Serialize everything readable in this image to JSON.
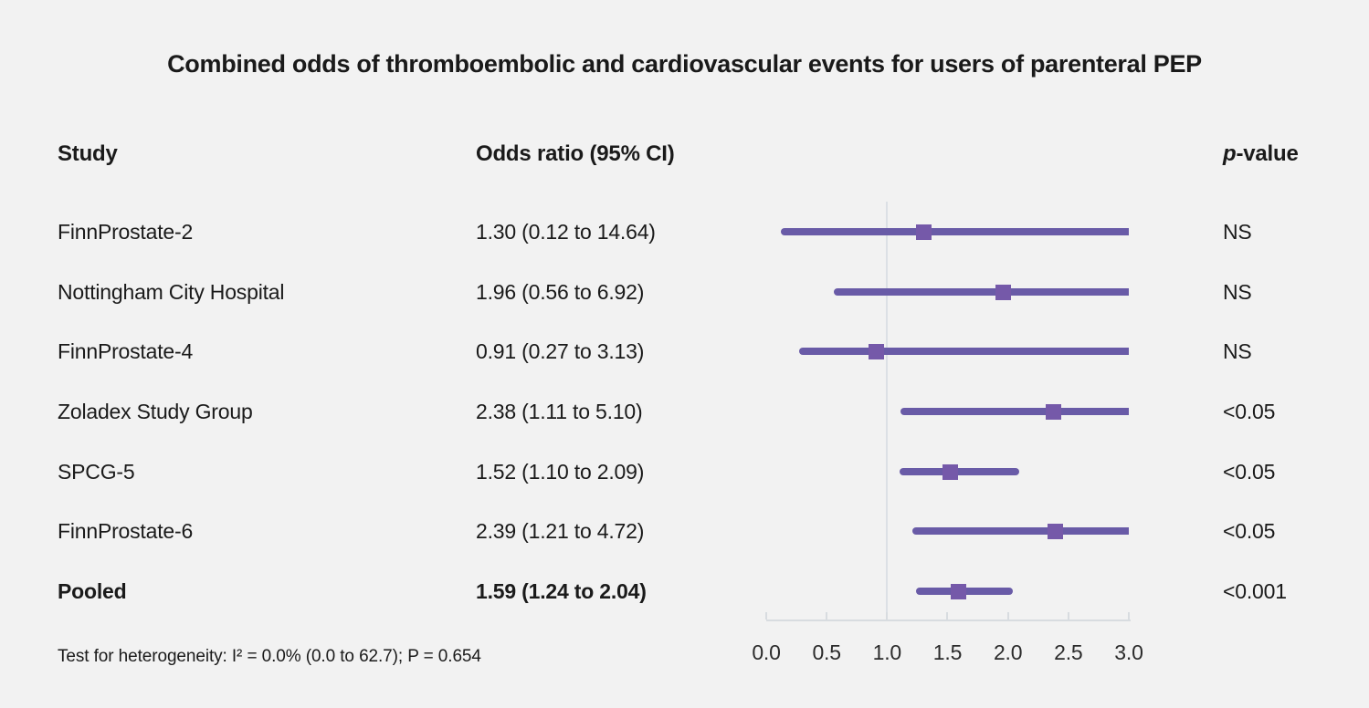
{
  "title": "Combined odds of thromboembolic and cardiovascular events for users of parenteral PEP",
  "columns": {
    "study": "Study",
    "odds_ratio": "Odds ratio (95% CI)",
    "p_value_italic": "p",
    "p_value_rest": "-value"
  },
  "footer": "Test for heterogeneity: I² = 0.0% (0.0 to 62.7); P = 0.654",
  "colors": {
    "background": "#f2f2f2",
    "ci_line": "#695BA7",
    "marker": "#7559A9",
    "reference_line": "#dce0e5",
    "axis_line": "#d8dce0",
    "text": "#1a1a1a"
  },
  "chart_data": {
    "type": "forest",
    "title": "Combined odds of thromboembolic and cardiovascular events for users of parenteral PEP",
    "xlim": [
      0.0,
      3.0
    ],
    "x_ticks": [
      "0.0",
      "0.5",
      "1.0",
      "1.5",
      "2.0",
      "2.5",
      "3.0"
    ],
    "reference_value": 1.0,
    "rows": [
      {
        "study": "FinnProstate-2",
        "or": 1.3,
        "ci_low": 0.12,
        "ci_high": 14.64,
        "or_label": "1.30 (0.12 to 14.64)",
        "p_value": "NS",
        "bold": false
      },
      {
        "study": "Nottingham City Hospital",
        "or": 1.96,
        "ci_low": 0.56,
        "ci_high": 6.92,
        "or_label": "1.96 (0.56 to 6.92)",
        "p_value": "NS",
        "bold": false
      },
      {
        "study": "FinnProstate-4",
        "or": 0.91,
        "ci_low": 0.27,
        "ci_high": 3.13,
        "or_label": "0.91 (0.27 to 3.13)",
        "p_value": "NS",
        "bold": false
      },
      {
        "study": "Zoladex Study Group",
        "or": 2.38,
        "ci_low": 1.11,
        "ci_high": 5.1,
        "or_label": "2.38 (1.11 to 5.10)",
        "p_value": "<0.05",
        "bold": false
      },
      {
        "study": "SPCG-5",
        "or": 1.52,
        "ci_low": 1.1,
        "ci_high": 2.09,
        "or_label": "1.52 (1.10 to 2.09)",
        "p_value": "<0.05",
        "bold": false
      },
      {
        "study": "FinnProstate-6",
        "or": 2.39,
        "ci_low": 1.21,
        "ci_high": 4.72,
        "or_label": "2.39 (1.21 to 4.72)",
        "p_value": "<0.05",
        "bold": false
      },
      {
        "study": "Pooled",
        "or": 1.59,
        "ci_low": 1.24,
        "ci_high": 2.04,
        "or_label": "1.59 (1.24 to 2.04)",
        "p_value": "<0.001",
        "bold": true
      }
    ]
  }
}
